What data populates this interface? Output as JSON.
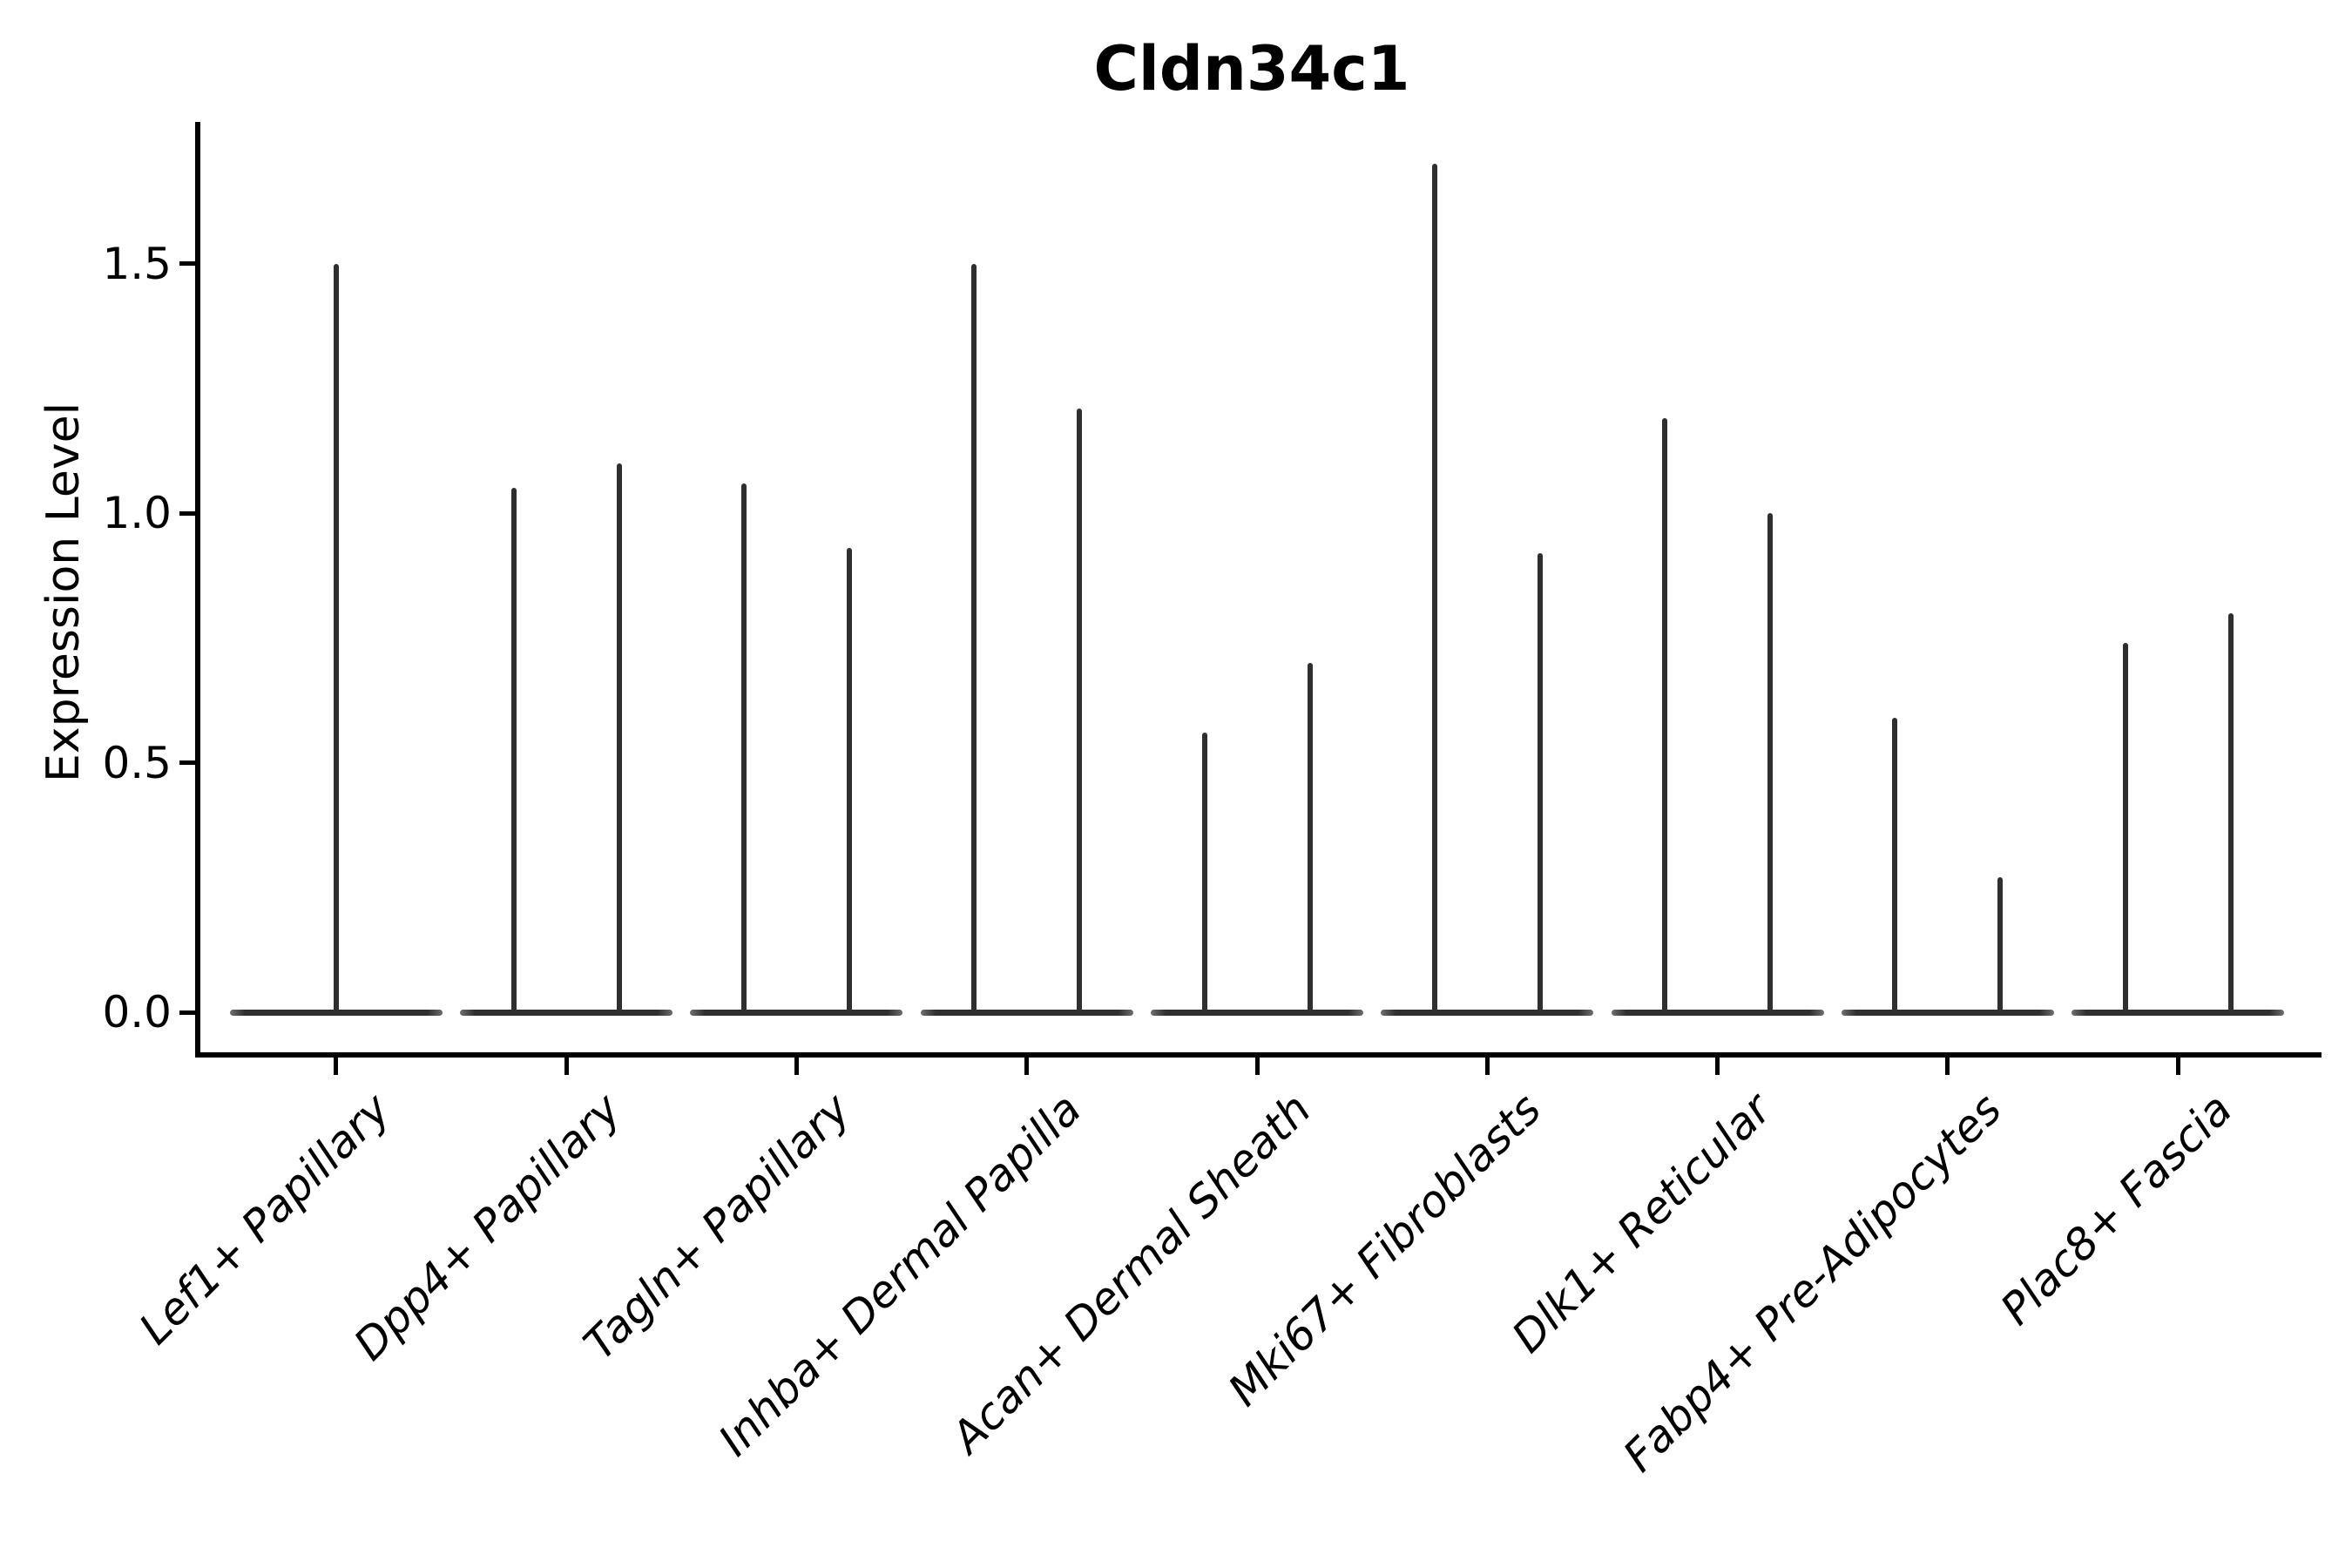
{
  "chart_data": {
    "type": "violin",
    "title": "Cldn34c1",
    "ylabel": "Expression Level",
    "xlabel": "",
    "ytick_labels": [
      "0.0",
      "0.5",
      "1.0",
      "1.5"
    ],
    "ytick_values": [
      0.0,
      0.5,
      1.0,
      1.5
    ],
    "ylim": [
      -0.08,
      1.78
    ],
    "grid": false,
    "legend": "none",
    "categories": [
      "Lef1+ Papillary",
      "Dpp4+ Papillary",
      "Tagln+ Papillary",
      "Inhba+ Dermal Papilla",
      "Acan+ Dermal Sheath",
      "Mki67+ Fibroblasts",
      "Dlk1+ Reticular",
      "Fabp4+ Pre-Adipocytes",
      "Plac8+ Fascia"
    ],
    "series": [
      {
        "category": "Lef1+ Papillary",
        "spike_maxima": [
          1.5
        ]
      },
      {
        "category": "Dpp4+ Papillary",
        "spike_maxima": [
          1.05,
          1.1
        ]
      },
      {
        "category": "Tagln+ Papillary",
        "spike_maxima": [
          1.06,
          0.93
        ]
      },
      {
        "category": "Inhba+ Dermal Papilla",
        "spike_maxima": [
          1.5,
          1.21
        ]
      },
      {
        "category": "Acan+ Dermal Sheath",
        "spike_maxima": [
          0.56,
          0.7
        ]
      },
      {
        "category": "Mki67+ Fibroblasts",
        "spike_maxima": [
          1.7,
          0.92
        ]
      },
      {
        "category": "Dlk1+ Reticular",
        "spike_maxima": [
          1.19,
          1.0
        ]
      },
      {
        "category": "Fabp4+ Pre-Adipocytes",
        "spike_maxima": [
          0.59,
          0.27
        ]
      },
      {
        "category": "Plac8+ Fascia",
        "spike_maxima": [
          0.74,
          0.8
        ]
      }
    ],
    "baseline_value": 0.0,
    "colors": {
      "violin": "#2f2f2f",
      "violin_base_edge": "#6e6e6e",
      "axis": "#000000",
      "text": "#000000",
      "background": "#ffffff"
    }
  }
}
